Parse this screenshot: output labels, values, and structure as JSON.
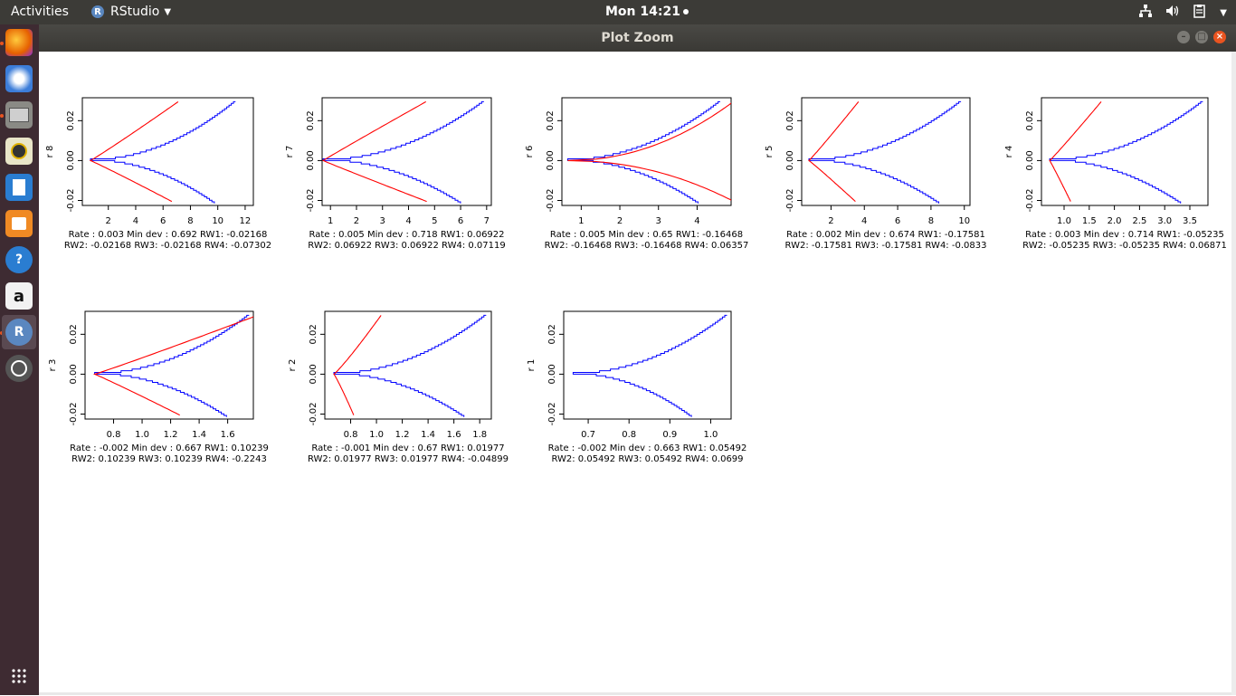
{
  "topbar": {
    "activities": "Activities",
    "app_name": "RStudio",
    "app_logo": "R",
    "clock": "Mon 14:21",
    "tray_icons": [
      "network-icon",
      "volume-icon",
      "clipboard-icon",
      "power-icon"
    ]
  },
  "dock": {
    "items": [
      "firefox-icon",
      "thunderbird-icon",
      "files-icon",
      "rhythmbox-icon",
      "libreoffice-writer-icon",
      "software-center-icon",
      "help-icon",
      "amazon-icon",
      "rstudio-icon",
      "software-updater-icon",
      "show-apps-icon"
    ],
    "amazon_label": "a",
    "rstudio_label": "R",
    "help_label": "?"
  },
  "window": {
    "title": "Plot Zoom",
    "colors": {
      "model": "#ff0000",
      "empirical": "#0000ff"
    }
  },
  "chart_data": [
    {
      "type": "line",
      "ylabel": "r 8",
      "yticks": [
        "-0.02",
        "0.00",
        "0.02"
      ],
      "xticks": [
        "2",
        "4",
        "6",
        "8",
        "10",
        "12"
      ],
      "xticks_num": [
        2,
        4,
        6,
        8,
        10,
        12
      ],
      "xlim": [
        0.1,
        12.6
      ],
      "ylim": [
        -0.0225,
        0.0315
      ],
      "min_dev": 0.692,
      "red_left": 6.5,
      "red_right": 7.0,
      "red_alpha": 0.96,
      "blue_xmax": 11.3,
      "blue_alpha": 1.0,
      "line1": "Rate : 0.003 Min dev : 0.692 RW1:  -0.02168",
      "line2": "RW2:  -0.02168 RW3:  -0.02168 RW4:  -0.07302"
    },
    {
      "type": "line",
      "ylabel": "r 7",
      "yticks": [
        "-0.02",
        "0.00",
        "0.02"
      ],
      "xticks": [
        "1",
        "2",
        "3",
        "4",
        "5",
        "6",
        "7"
      ],
      "xticks_num": [
        1,
        2,
        3,
        4,
        5,
        6,
        7
      ],
      "xlim": [
        0.68,
        7.18
      ],
      "ylim": [
        -0.0225,
        0.0315
      ],
      "min_dev": 0.718,
      "red_left": 4.6,
      "red_right": 4.6,
      "red_alpha": 1.02,
      "blue_xmax": 6.9,
      "blue_alpha": 1.0,
      "line1": "Rate : 0.005 Min dev : 0.718 RW1:  0.06922",
      "line2": "RW2:  0.06922 RW3:  0.06922 RW4:  0.07119"
    },
    {
      "type": "line",
      "ylabel": "r 6",
      "yticks": [
        "-0.02",
        "0.00",
        "0.02"
      ],
      "xticks": [
        "1",
        "2",
        "3",
        "4"
      ],
      "xticks_num": [
        1,
        2,
        3,
        4
      ],
      "xlim": [
        0.5,
        4.88
      ],
      "ylim": [
        -0.0225,
        0.0315
      ],
      "min_dev": 0.65,
      "red_left": 4.9,
      "red_right": 4.9,
      "red_alpha": 0.48,
      "blue_xmax": 4.6,
      "blue_alpha": 1.0,
      "line1": "Rate : 0.005 Min dev : 0.65 RW1:  -0.16468",
      "line2": "RW2:  -0.16468 RW3:  -0.16468 RW4:  0.06357"
    },
    {
      "type": "line",
      "ylabel": "r 5",
      "yticks": [
        "-0.02",
        "0.00",
        "0.02"
      ],
      "xticks": [
        "2",
        "4",
        "6",
        "8",
        "10"
      ],
      "xticks_num": [
        2,
        4,
        6,
        8,
        10
      ],
      "xlim": [
        0.24,
        10.34
      ],
      "ylim": [
        -0.0225,
        0.0315
      ],
      "min_dev": 0.674,
      "red_left": 3.4,
      "red_right": 3.6,
      "red_alpha": 0.96,
      "blue_xmax": 9.8,
      "blue_alpha": 1.0,
      "line1": "Rate : 0.002 Min dev : 0.674 RW1:  -0.17581",
      "line2": "RW2:  -0.17581 RW3:  -0.17581 RW4:  -0.0833"
    },
    {
      "type": "line",
      "ylabel": "r 4",
      "yticks": [
        "-0.02",
        "0.00",
        "0.02"
      ],
      "xticks": [
        "1.0",
        "1.5",
        "2.0",
        "2.5",
        "3.0",
        "3.5"
      ],
      "xticks_num": [
        1.0,
        1.5,
        2.0,
        2.5,
        3.0,
        3.5
      ],
      "xlim": [
        0.55,
        3.86
      ],
      "ylim": [
        -0.0225,
        0.0315
      ],
      "min_dev": 0.714,
      "red_left": 1.12,
      "red_right": 1.72,
      "red_alpha": 0.96,
      "blue_xmax": 3.76,
      "blue_alpha": 1.0,
      "line1": "Rate : 0.003 Min dev : 0.714 RW1:  -0.05235",
      "line2": "RW2:  -0.05235 RW3:  -0.05235 RW4:  0.06871"
    },
    {
      "type": "line",
      "ylabel": "r 3",
      "yticks": [
        "-0.02",
        "0.00",
        "0.02"
      ],
      "xticks": [
        "0.8",
        "1.0",
        "1.2",
        "1.4",
        "1.6"
      ],
      "xticks_num": [
        0.8,
        1.0,
        1.2,
        1.4,
        1.6
      ],
      "xlim": [
        0.6,
        1.78
      ],
      "ylim": [
        -0.0225,
        0.0315
      ],
      "min_dev": 0.667,
      "red_left": 1.25,
      "red_right": 1.79,
      "red_alpha": 0.96,
      "blue_xmax": 1.75,
      "blue_alpha": 1.0,
      "line1": "Rate : -0.002 Min dev : 0.667 RW1:  0.10239",
      "line2": "RW2:  0.10239 RW3:  0.10239 RW4:  -0.2243"
    },
    {
      "type": "line",
      "ylabel": "r 2",
      "yticks": [
        "-0.02",
        "0.00",
        "0.02"
      ],
      "xticks": [
        "0.8",
        "1.0",
        "1.2",
        "1.4",
        "1.6",
        "1.8"
      ],
      "xticks_num": [
        0.8,
        1.0,
        1.2,
        1.4,
        1.6,
        1.8
      ],
      "xlim": [
        0.6,
        1.89
      ],
      "ylim": [
        -0.0225,
        0.0315
      ],
      "min_dev": 0.67,
      "red_left": 0.82,
      "red_right": 1.03,
      "red_alpha": 0.9,
      "blue_xmax": 1.85,
      "blue_alpha": 1.0,
      "line1": "Rate : -0.001 Min dev : 0.67 RW1:  0.01977",
      "line2": "RW2:  0.01977 RW3:  0.01977 RW4:  -0.04899"
    },
    {
      "type": "line",
      "ylabel": "r 1",
      "yticks": [
        "-0.02",
        "0.00",
        "0.02"
      ],
      "xticks": [
        "0.7",
        "0.8",
        "0.9",
        "1.0"
      ],
      "xticks_num": [
        0.7,
        0.8,
        0.9,
        1.0
      ],
      "xlim": [
        0.64,
        1.05
      ],
      "ylim": [
        -0.0225,
        0.0315
      ],
      "min_dev": 0.663,
      "red_left": null,
      "red_right": null,
      "red_alpha": 1.0,
      "blue_xmax": 1.04,
      "blue_alpha": 0.9,
      "line1": "Rate : -0.002 Min dev : 0.663 RW1:  0.05492",
      "line2": "RW2:  0.05492 RW3:  0.05492 RW4:  0.0699"
    }
  ]
}
